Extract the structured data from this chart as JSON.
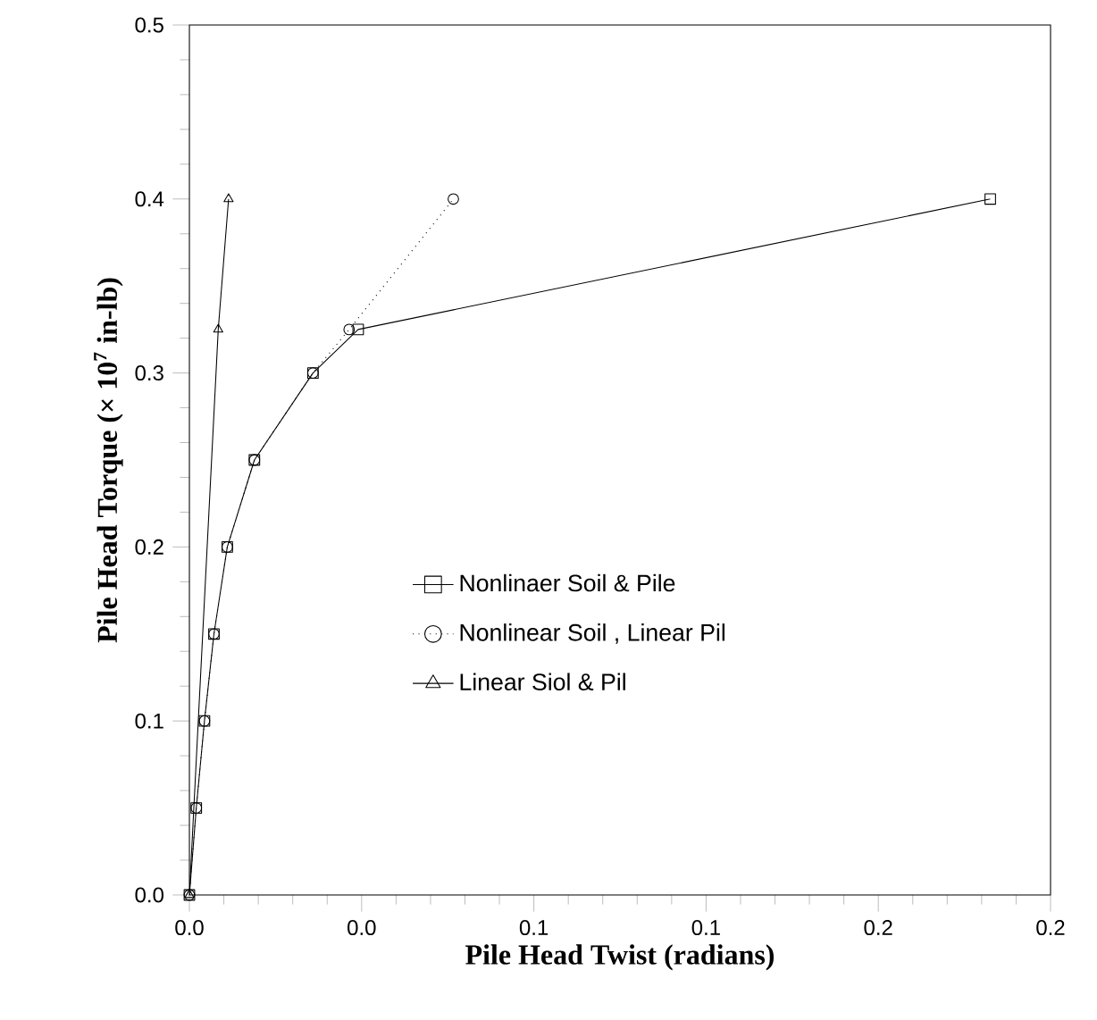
{
  "chart_data": {
    "type": "line",
    "xlabel": "Pile Head Twist (radians)",
    "ylabel": "Pile Head Torque (× 10$^{7}$ in-lb)",
    "xlim": [
      0,
      0.2
    ],
    "ylim": [
      0,
      0.5
    ],
    "xticks": [
      {
        "value": 0,
        "label": "0.0"
      },
      {
        "value": 0.04,
        "label": "0.0"
      },
      {
        "value": 0.08,
        "label": "0.1"
      },
      {
        "value": 0.12,
        "label": "0.1"
      },
      {
        "value": 0.16,
        "label": "0.2"
      },
      {
        "value": 0.2,
        "label": "0.2"
      }
    ],
    "yticks": [
      {
        "value": 0,
        "label": "0.0"
      },
      0.1,
      0.2,
      0.3,
      0.4,
      0.5
    ],
    "grid": false,
    "legend": "center",
    "series": [
      {
        "name": "Nonlinaer Soil & Pile",
        "color": "#000000",
        "marker": "square",
        "line_style": "solid",
        "x": [
          0,
          0.0016,
          0.0035,
          0.0057,
          0.0088,
          0.0151,
          0.0287,
          0.0392,
          0.186
        ],
        "values": [
          0,
          0.05,
          0.1,
          0.15,
          0.2,
          0.25,
          0.3,
          0.325,
          0.4
        ]
      },
      {
        "name": "Nonlinear Soil , Linear Pil",
        "color": "#000000",
        "marker": "circle",
        "line_style": "dotted",
        "x": [
          0,
          0.0016,
          0.0035,
          0.0057,
          0.0088,
          0.0151,
          0.0287,
          0.0371,
          0.0613
        ],
        "values": [
          0,
          0.05,
          0.1,
          0.15,
          0.2,
          0.25,
          0.3,
          0.325,
          0.4
        ]
      },
      {
        "name": "Linear Siol & Pil",
        "color": "#000000",
        "marker": "triangle",
        "line_style": "solid",
        "x": [
          0,
          0.0067,
          0.0091
        ],
        "values": [
          0,
          0.325,
          0.4
        ]
      }
    ]
  }
}
